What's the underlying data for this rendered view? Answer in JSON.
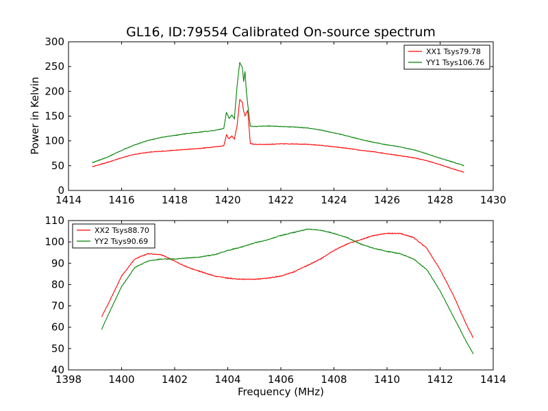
{
  "figure": {
    "title": "GL16, ID:79554 Calibrated On-source spectrum",
    "shared_ylabel": "Power in Kelvin",
    "shared_xlabel": "Frequency (MHz)"
  },
  "colors": {
    "red": "#ff0000",
    "green": "#008000",
    "axes": "#000000",
    "background": "#ffffff"
  },
  "chart_data": [
    {
      "type": "line",
      "title": "GL16, ID:79554 Calibrated On-source spectrum",
      "ylabel": "Power in Kelvin",
      "xlabel": "",
      "xlim": [
        1414,
        1430
      ],
      "ylim": [
        0,
        300
      ],
      "xticks": [
        1414,
        1416,
        1418,
        1420,
        1422,
        1424,
        1426,
        1428,
        1430
      ],
      "yticks": [
        0,
        50,
        100,
        150,
        200,
        250,
        300
      ],
      "grid": false,
      "legend_position": "top-right",
      "series": [
        {
          "name": "XX1 Tsys79.78",
          "color": "#ff0000",
          "points": [
            [
              1414.9,
              48
            ],
            [
              1415.5,
              57
            ],
            [
              1416,
              66
            ],
            [
              1416.5,
              73
            ],
            [
              1417,
              77
            ],
            [
              1417.5,
              79
            ],
            [
              1418,
              81
            ],
            [
              1418.5,
              83
            ],
            [
              1419,
              85
            ],
            [
              1419.5,
              88
            ],
            [
              1419.85,
              90
            ],
            [
              1419.95,
              112
            ],
            [
              1420.05,
              104
            ],
            [
              1420.15,
              110
            ],
            [
              1420.25,
              104
            ],
            [
              1420.35,
              130
            ],
            [
              1420.45,
              183
            ],
            [
              1420.55,
              178
            ],
            [
              1420.6,
              160
            ],
            [
              1420.65,
              150
            ],
            [
              1420.75,
              162
            ],
            [
              1420.85,
              95
            ],
            [
              1421,
              93
            ],
            [
              1421.5,
              93
            ],
            [
              1422,
              94
            ],
            [
              1422.5,
              94
            ],
            [
              1423,
              93
            ],
            [
              1423.5,
              91
            ],
            [
              1424,
              88
            ],
            [
              1424.5,
              85
            ],
            [
              1425,
              81
            ],
            [
              1425.5,
              78
            ],
            [
              1426,
              74
            ],
            [
              1426.5,
              70
            ],
            [
              1427,
              66
            ],
            [
              1427.5,
              60
            ],
            [
              1428,
              52
            ],
            [
              1428.5,
              43
            ],
            [
              1428.9,
              37
            ]
          ]
        },
        {
          "name": "YY1 Tsys106.76",
          "color": "#008000",
          "points": [
            [
              1414.9,
              56
            ],
            [
              1415.5,
              68
            ],
            [
              1416,
              81
            ],
            [
              1416.5,
              92
            ],
            [
              1417,
              101
            ],
            [
              1417.5,
              107
            ],
            [
              1418,
              111
            ],
            [
              1418.5,
              115
            ],
            [
              1419,
              118
            ],
            [
              1419.5,
              121
            ],
            [
              1419.85,
              125
            ],
            [
              1419.95,
              158
            ],
            [
              1420.05,
              145
            ],
            [
              1420.15,
              152
            ],
            [
              1420.25,
              145
            ],
            [
              1420.35,
              210
            ],
            [
              1420.45,
              258
            ],
            [
              1420.55,
              248
            ],
            [
              1420.6,
              220
            ],
            [
              1420.65,
              240
            ],
            [
              1420.7,
              200
            ],
            [
              1420.75,
              175
            ],
            [
              1420.85,
              130
            ],
            [
              1421,
              129
            ],
            [
              1421.5,
              130
            ],
            [
              1422,
              129
            ],
            [
              1422.5,
              128
            ],
            [
              1423,
              126
            ],
            [
              1423.5,
              122
            ],
            [
              1424,
              116
            ],
            [
              1424.5,
              110
            ],
            [
              1425,
              103
            ],
            [
              1425.5,
              97
            ],
            [
              1426,
              92
            ],
            [
              1426.5,
              88
            ],
            [
              1427,
              82
            ],
            [
              1427.5,
              74
            ],
            [
              1428,
              65
            ],
            [
              1428.5,
              57
            ],
            [
              1428.9,
              50
            ]
          ]
        }
      ]
    },
    {
      "type": "line",
      "title": "",
      "ylabel": "",
      "xlabel": "Frequency (MHz)",
      "xlim": [
        1398,
        1414
      ],
      "ylim": [
        40,
        110
      ],
      "xticks": [
        1398,
        1400,
        1402,
        1404,
        1406,
        1408,
        1410,
        1412,
        1414
      ],
      "yticks": [
        40,
        50,
        60,
        70,
        80,
        90,
        100,
        110
      ],
      "grid": false,
      "legend_position": "top-left",
      "series": [
        {
          "name": "XX2 Tsys88.70",
          "color": "#ff0000",
          "points": [
            [
              1399.25,
              65
            ],
            [
              1399.5,
              71
            ],
            [
              1400,
              84
            ],
            [
              1400.5,
              92
            ],
            [
              1401,
              94.5
            ],
            [
              1401.5,
              94
            ],
            [
              1402,
              91
            ],
            [
              1402.5,
              88
            ],
            [
              1403,
              86
            ],
            [
              1403.5,
              84
            ],
            [
              1404,
              83
            ],
            [
              1404.5,
              82.5
            ],
            [
              1405,
              82.5
            ],
            [
              1405.5,
              83
            ],
            [
              1406,
              84
            ],
            [
              1406.5,
              86
            ],
            [
              1407,
              89
            ],
            [
              1407.5,
              92
            ],
            [
              1408,
              96
            ],
            [
              1408.5,
              99
            ],
            [
              1409,
              101
            ],
            [
              1409.5,
              103
            ],
            [
              1410,
              104
            ],
            [
              1410.5,
              104
            ],
            [
              1411,
              102
            ],
            [
              1411.5,
              97
            ],
            [
              1412,
              87
            ],
            [
              1412.5,
              75
            ],
            [
              1413,
              61
            ],
            [
              1413.25,
              55
            ]
          ]
        },
        {
          "name": "YY2 Tsys90.69",
          "color": "#008000",
          "points": [
            [
              1399.25,
              59
            ],
            [
              1399.5,
              66
            ],
            [
              1400,
              79
            ],
            [
              1400.5,
              88
            ],
            [
              1401,
              91
            ],
            [
              1401.5,
              92
            ],
            [
              1402,
              92
            ],
            [
              1402.5,
              92.5
            ],
            [
              1403,
              93
            ],
            [
              1403.5,
              94
            ],
            [
              1404,
              96
            ],
            [
              1404.5,
              97.5
            ],
            [
              1405,
              99.5
            ],
            [
              1405.5,
              101
            ],
            [
              1406,
              103
            ],
            [
              1406.5,
              104.5
            ],
            [
              1407,
              106
            ],
            [
              1407.5,
              105.5
            ],
            [
              1408,
              104
            ],
            [
              1408.5,
              102
            ],
            [
              1409,
              99
            ],
            [
              1409.5,
              97
            ],
            [
              1410,
              95.5
            ],
            [
              1410.5,
              94.5
            ],
            [
              1411,
              92
            ],
            [
              1411.5,
              87
            ],
            [
              1412,
              77
            ],
            [
              1412.5,
              65
            ],
            [
              1413,
              53
            ],
            [
              1413.25,
              47.5
            ]
          ]
        }
      ]
    }
  ]
}
